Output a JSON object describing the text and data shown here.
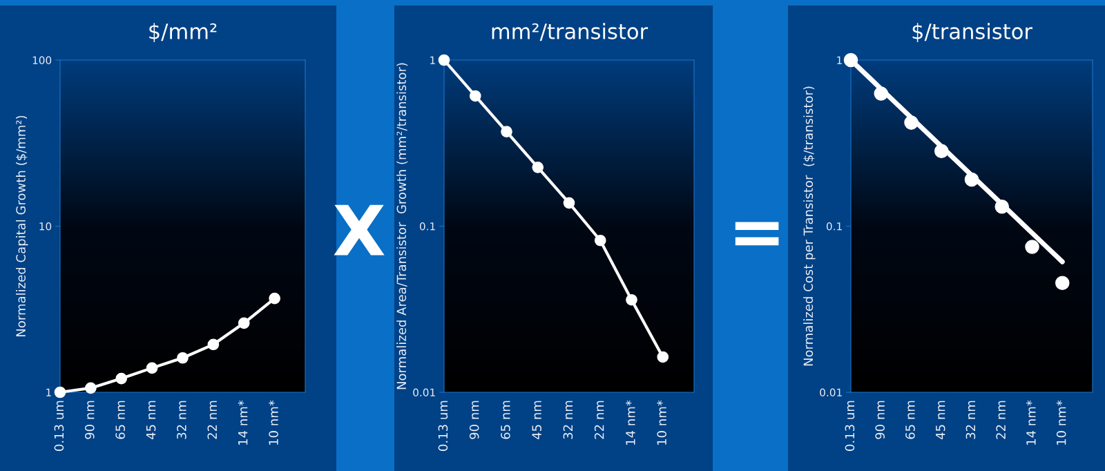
{
  "chart_data": [
    {
      "type": "line",
      "title": "$/mm²",
      "ylabel": "Normalized Capital Growth ($/mm²)",
      "categories": [
        "0.13 um",
        "90 nm",
        "65 nm",
        "45 nm",
        "32 nm",
        "22 nm",
        "14 nm*",
        "10 nm*"
      ],
      "log": true,
      "ylim": [
        1,
        100
      ],
      "yticks": [
        1,
        10,
        100
      ],
      "marker": "circle",
      "annotations": [
        "X"
      ],
      "series": [
        {
          "color": "#ffffff",
          "values": [
            1.0,
            1.06,
            1.21,
            1.4,
            1.61,
            1.94,
            2.61,
            3.67
          ]
        }
      ]
    },
    {
      "type": "line",
      "title": "mm²/transistor",
      "ylabel": "Normalized Area/Transistor  Growth (mm²/transistor)",
      "categories": [
        "0.13 um",
        "90 nm",
        "65 nm",
        "45 nm",
        "32 nm",
        "22 nm",
        "14 nm*",
        "10 nm*"
      ],
      "log": true,
      "ylim": [
        0.01,
        1
      ],
      "yticks": [
        0.01,
        0.1,
        1
      ],
      "marker": "circle",
      "annotations": [
        "="
      ],
      "series": [
        {
          "color": "#ffffff",
          "values": [
            1.0,
            0.608,
            0.371,
            0.226,
            0.138,
            0.082,
            0.036,
            0.0163
          ]
        }
      ]
    },
    {
      "type": "scatter",
      "title": "$/transistor",
      "ylabel": "Normalized Cost per Transistor  ($/transistor)",
      "categories": [
        "0.13 um",
        "90 nm",
        "65 nm",
        "45 nm",
        "32 nm",
        "22 nm",
        "14 nm*",
        "10 nm*"
      ],
      "log": true,
      "ylim": [
        0.01,
        1
      ],
      "yticks": [
        0.01,
        0.1,
        1
      ],
      "marker": "circle",
      "series": [
        {
          "color": "#ffffff",
          "values": [
            1.0,
            0.628,
            0.42,
            0.283,
            0.191,
            0.131,
            0.075,
            0.0455
          ]
        },
        {
          "type": "line",
          "color": "#ffffff",
          "x": [
            "0.13 um",
            "10 nm*"
          ],
          "values": [
            1.0,
            0.061
          ],
          "marker": "none"
        }
      ]
    }
  ]
}
